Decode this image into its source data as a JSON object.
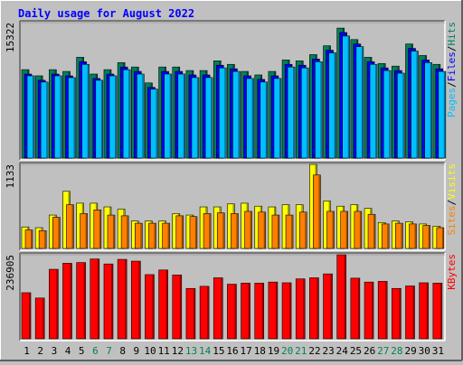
{
  "title": "Daily usage for August 2022",
  "colors": {
    "hits": "#00805c",
    "files": "#0000ff",
    "pages": "#00c0ff",
    "visits": "#ffff00",
    "sites": "#ff8000",
    "kbytes": "#ff0000",
    "weekend": "#00805c",
    "weekday": "#000000",
    "title": "#0000ff"
  },
  "chart_data": [
    {
      "type": "bar",
      "panel": "hits-files-pages",
      "axis_max_label": "15322",
      "ylim": [
        0,
        15322
      ],
      "legend": [
        "Pages",
        "/",
        "Files",
        "/",
        "Hits"
      ],
      "x": [
        "1",
        "2",
        "3",
        "4",
        "5",
        "6",
        "7",
        "8",
        "9",
        "10",
        "11",
        "12",
        "13",
        "14",
        "15",
        "16",
        "17",
        "18",
        "19",
        "20",
        "21",
        "22",
        "23",
        "24",
        "25",
        "26",
        "27",
        "28",
        "29",
        "30",
        "31"
      ],
      "series": [
        {
          "name": "Hits",
          "values": [
            10000,
            9300,
            10000,
            9800,
            11400,
            9500,
            10000,
            10800,
            10300,
            8500,
            10300,
            10300,
            9900,
            9900,
            11000,
            10600,
            9800,
            9400,
            9800,
            11100,
            11000,
            11700,
            12700,
            14700,
            13400,
            11400,
            10700,
            10400,
            12900,
            11600,
            10600
          ]
        },
        {
          "name": "Files",
          "values": [
            9500,
            8800,
            9500,
            9300,
            10900,
            9000,
            9500,
            10300,
            9800,
            8000,
            9800,
            9800,
            9400,
            9400,
            10500,
            10100,
            9300,
            8900,
            9300,
            10600,
            10500,
            11200,
            12200,
            14200,
            12900,
            10900,
            10200,
            9900,
            12400,
            11100,
            10100
          ]
        },
        {
          "name": "Pages",
          "values": [
            9300,
            8600,
            9300,
            9100,
            10600,
            8800,
            9300,
            10000,
            9500,
            7800,
            9500,
            9500,
            9100,
            9100,
            10200,
            9800,
            9000,
            8600,
            9000,
            10300,
            10200,
            10900,
            11900,
            13800,
            12600,
            10600,
            9900,
            9600,
            12100,
            10800,
            9800
          ]
        }
      ]
    },
    {
      "type": "bar",
      "panel": "visits-sites",
      "axis_max_label": "1133",
      "ylim": [
        0,
        1133
      ],
      "legend": [
        "Sites",
        "/",
        "Visits"
      ],
      "x": [
        "1",
        "2",
        "3",
        "4",
        "5",
        "6",
        "7",
        "8",
        "9",
        "10",
        "11",
        "12",
        "13",
        "14",
        "15",
        "16",
        "17",
        "18",
        "19",
        "20",
        "21",
        "22",
        "23",
        "24",
        "25",
        "26",
        "27",
        "28",
        "29",
        "30",
        "31"
      ],
      "series": [
        {
          "name": "Visits",
          "values": [
            290,
            280,
            450,
            770,
            610,
            610,
            560,
            530,
            370,
            370,
            370,
            470,
            450,
            560,
            560,
            600,
            610,
            570,
            560,
            590,
            590,
            1133,
            640,
            570,
            590,
            540,
            350,
            370,
            360,
            330,
            300
          ]
        },
        {
          "name": "Sites",
          "values": [
            250,
            240,
            420,
            590,
            470,
            520,
            450,
            440,
            340,
            340,
            340,
            440,
            430,
            470,
            480,
            470,
            500,
            490,
            450,
            450,
            490,
            990,
            500,
            500,
            500,
            460,
            330,
            340,
            330,
            310,
            280
          ]
        }
      ]
    },
    {
      "type": "bar",
      "panel": "kbytes",
      "axis_max_label": "236905",
      "ylim": [
        0,
        236905
      ],
      "legend": [
        "KBytes"
      ],
      "x": [
        "1",
        "2",
        "3",
        "4",
        "5",
        "6",
        "7",
        "8",
        "9",
        "10",
        "11",
        "12",
        "13",
        "14",
        "15",
        "16",
        "17",
        "18",
        "19",
        "20",
        "21",
        "22",
        "23",
        "24",
        "25",
        "26",
        "27",
        "28",
        "29",
        "30",
        "31"
      ],
      "series": [
        {
          "name": "KBytes",
          "values": [
            130000,
            115000,
            196000,
            213000,
            215000,
            225000,
            211000,
            224000,
            219000,
            181000,
            194000,
            180000,
            142000,
            148000,
            172000,
            154000,
            157000,
            157000,
            160000,
            158000,
            169000,
            172000,
            183000,
            236905,
            171000,
            160000,
            162000,
            142000,
            149000,
            158000,
            157000
          ]
        }
      ]
    }
  ],
  "weekend_days": [
    "6",
    "7",
    "13",
    "14",
    "20",
    "21",
    "27",
    "28"
  ]
}
